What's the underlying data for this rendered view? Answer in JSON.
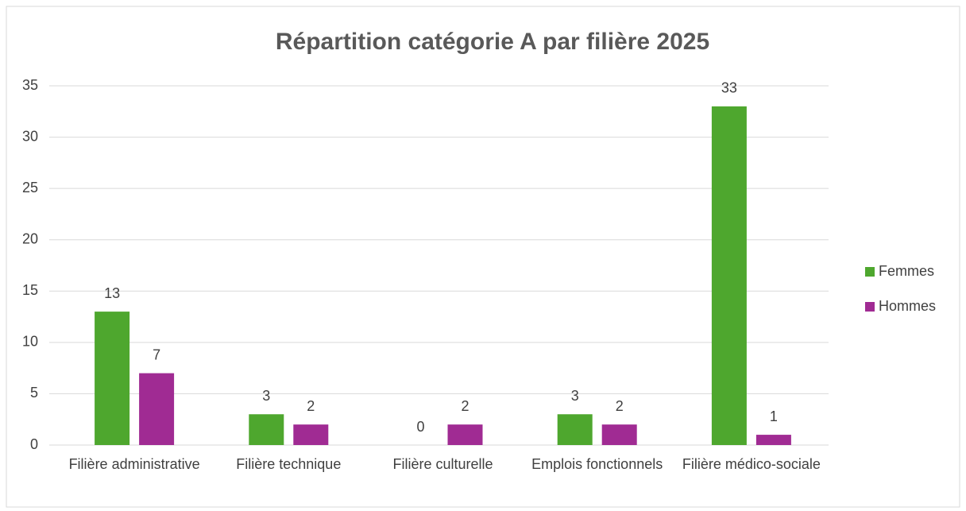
{
  "chart_data": {
    "type": "bar",
    "title": "Répartition catégorie A par filière 2025",
    "categories": [
      "Filière administrative",
      "Filière technique",
      "Filière culturelle",
      "Emplois fonctionnels",
      "Filière médico-sociale"
    ],
    "series": [
      {
        "name": "Femmes",
        "color": "#4ea72e",
        "values": [
          13,
          3,
          0,
          3,
          33
        ]
      },
      {
        "name": "Hommes",
        "color": "#a02b93",
        "values": [
          7,
          2,
          2,
          2,
          1
        ]
      }
    ],
    "ylim": [
      0,
      35
    ],
    "yticks": [
      0,
      5,
      10,
      15,
      20,
      25,
      30,
      35
    ],
    "grid": true,
    "legend": "right"
  }
}
